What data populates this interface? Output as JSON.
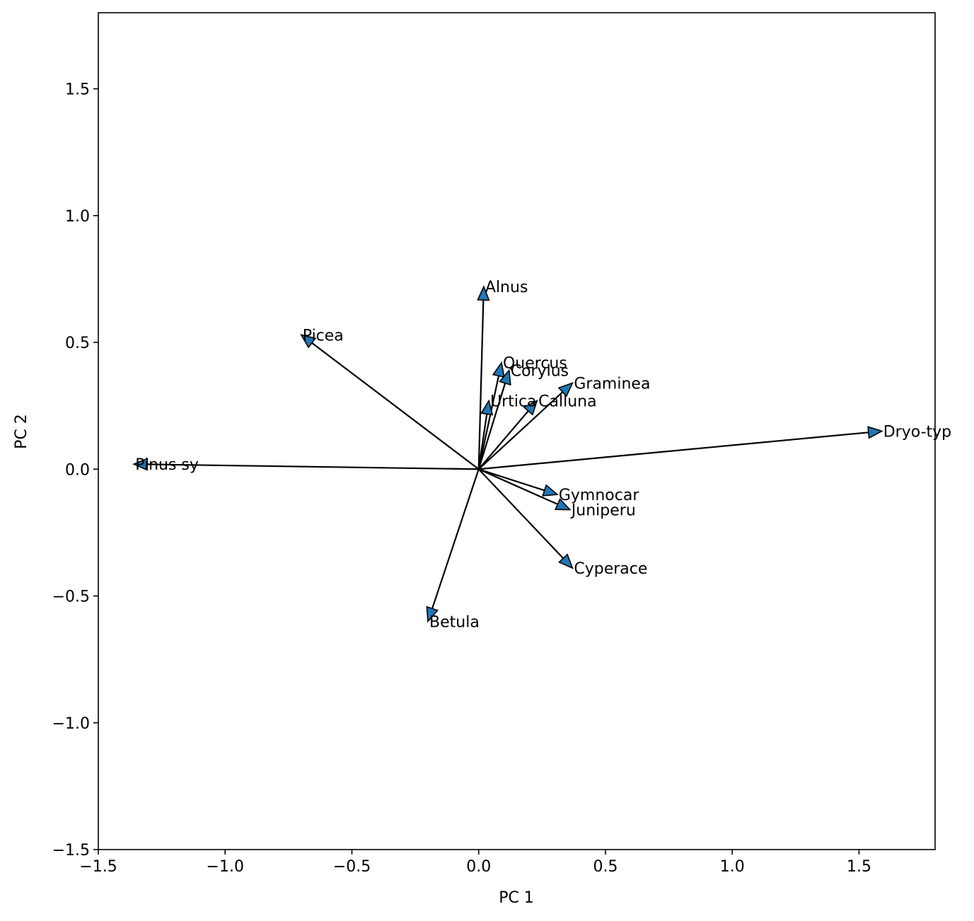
{
  "chart_data": {
    "type": "scatter",
    "title": "",
    "xlabel": "PC 1",
    "ylabel": "PC 2",
    "xlim": [
      -1.5,
      1.8
    ],
    "ylim": [
      -1.5,
      1.8
    ],
    "xticks": [
      -1.5,
      -1.0,
      -0.5,
      0.0,
      0.5,
      1.0,
      1.5
    ],
    "xtick_labels": [
      "−1.5",
      "−1.0",
      "−0.5",
      "0.0",
      "0.5",
      "1.0",
      "1.5"
    ],
    "yticks": [
      -1.5,
      -1.0,
      -0.5,
      0.0,
      0.5,
      1.0,
      1.5
    ],
    "ytick_labels": [
      "−1.5",
      "−1.0",
      "−0.5",
      "0.0",
      "0.5",
      "1.0",
      "1.5"
    ],
    "grid": false,
    "legend": "none",
    "arrow_color": "#1f77b4",
    "arrows": [
      {
        "label": "Alnus",
        "x": 0.02,
        "y": 0.72
      },
      {
        "label": "Picea",
        "x": -0.7,
        "y": 0.53
      },
      {
        "label": "Quercus",
        "x": 0.09,
        "y": 0.42
      },
      {
        "label": "Corylus",
        "x": 0.12,
        "y": 0.39
      },
      {
        "label": "Graminea",
        "x": 0.37,
        "y": 0.34
      },
      {
        "label": "Urtica",
        "x": 0.04,
        "y": 0.27
      },
      {
        "label": "Calluna",
        "x": 0.23,
        "y": 0.27
      },
      {
        "label": "Dryo-typ",
        "x": 1.59,
        "y": 0.15
      },
      {
        "label": "Pinus sy",
        "x": -1.36,
        "y": 0.02
      },
      {
        "label": "Gymnocar",
        "x": 0.31,
        "y": -0.1
      },
      {
        "label": "Juniperu",
        "x": 0.36,
        "y": -0.16
      },
      {
        "label": "Cyperace",
        "x": 0.37,
        "y": -0.39
      },
      {
        "label": "Betula",
        "x": -0.2,
        "y": -0.6
      }
    ]
  }
}
